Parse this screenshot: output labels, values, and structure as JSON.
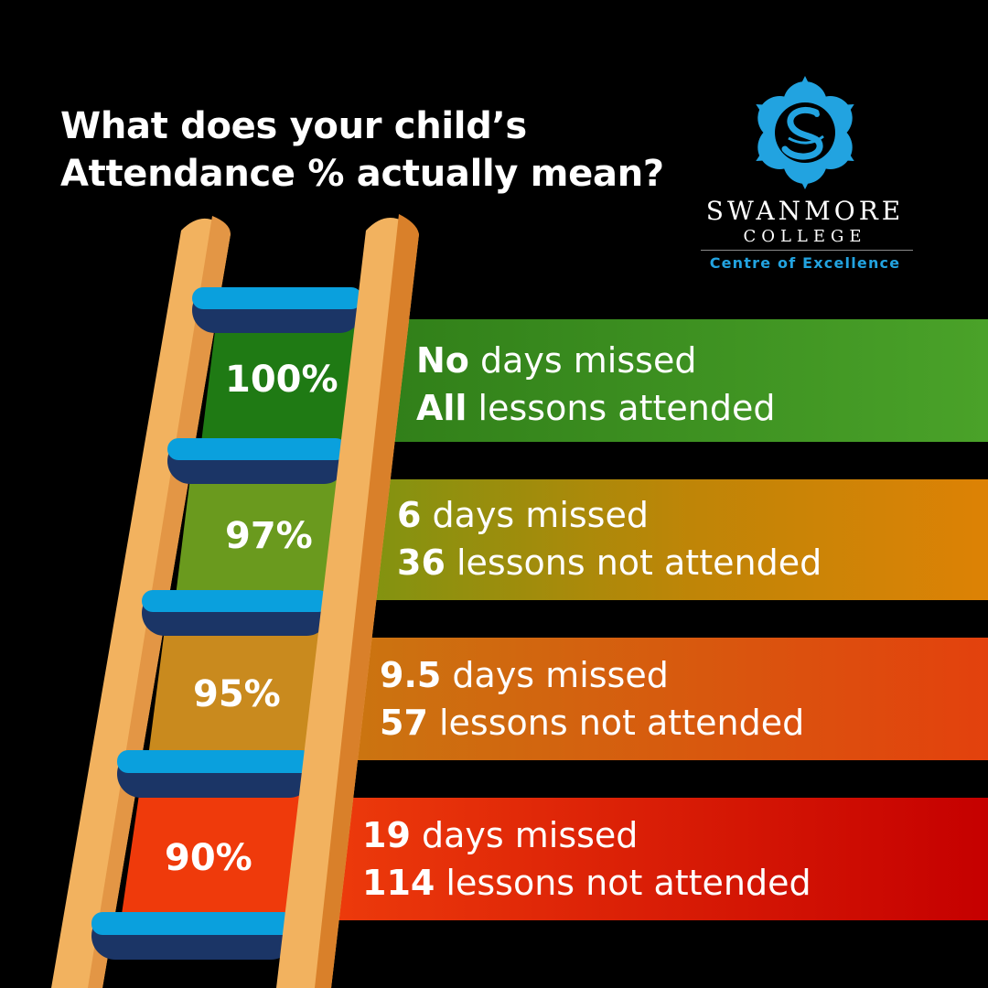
{
  "title": {
    "line1": "What does your child’s",
    "line2": "Attendance % actually mean?"
  },
  "logo": {
    "name": "SWANMORE",
    "sub": "COLLEGE",
    "tagline": "Centre of Excellence"
  },
  "levels": [
    {
      "percent": "100%",
      "value": 100,
      "days_bold": "No",
      "days_text": " days missed",
      "lessons_bold": "All",
      "lessons_text": " lessons attended",
      "color": "#1f7a14",
      "band_from": "#2f7d18",
      "band_to": "#4aa229"
    },
    {
      "percent": "97%",
      "value": 97,
      "days_bold": "6",
      "days_text": " days missed",
      "lessons_bold": "36",
      "lessons_text": " lessons not attended",
      "color": "#6a9a1e",
      "band_from": "#7a9512",
      "band_to": "#dd8205"
    },
    {
      "percent": "95%",
      "value": 95,
      "days_bold": "9.5",
      "days_text": " days missed",
      "lessons_bold": "57",
      "lessons_text": " lessons not attended",
      "color": "#c98a1e",
      "band_from": "#c97810",
      "band_to": "#e3410d"
    },
    {
      "percent": "90%",
      "value": 90,
      "days_bold": "19",
      "days_text": " days missed",
      "lessons_bold": "114",
      "lessons_text": " lessons not attended",
      "color": "#ef3a0b",
      "band_from": "#ef3e0c",
      "band_to": "#c50000"
    }
  ],
  "colors": {
    "background": "#000000",
    "rung_top": "#0aa0dd",
    "rung_bottom": "#1b3566",
    "rail_light": "#f2b25f",
    "rail_dark": "#d9802a",
    "logo_blue": "#22a3e0"
  }
}
